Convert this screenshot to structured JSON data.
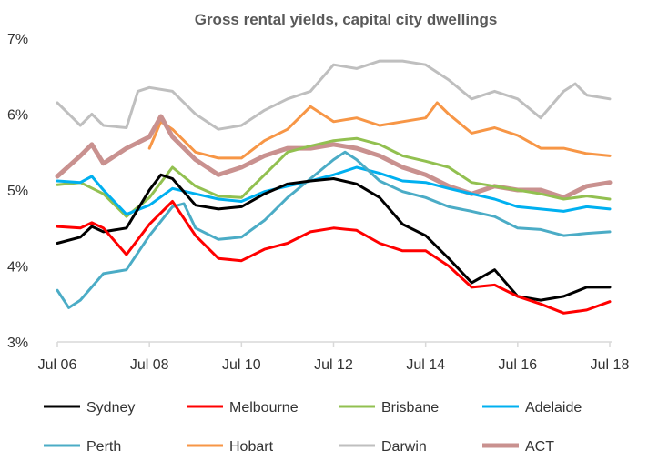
{
  "chart_data": {
    "type": "line",
    "title": "Gross rental yields, capital city dwellings",
    "xlabel": "",
    "ylabel": "",
    "x_ticks": [
      "Jul 06",
      "Jul 08",
      "Jul 10",
      "Jul 12",
      "Jul 14",
      "Jul 16",
      "Jul 18"
    ],
    "x_range": [
      "2006-07",
      "2018-07"
    ],
    "y_ticks": [
      "3%",
      "4%",
      "5%",
      "6%",
      "7%"
    ],
    "ylim": [
      3,
      7
    ],
    "grid": false,
    "legend_position": "bottom",
    "series": [
      {
        "name": "Sydney",
        "color": "#000000",
        "width": 3,
        "points": [
          [
            "2006-07",
            4.3
          ],
          [
            "2007-01",
            4.38
          ],
          [
            "2007-04",
            4.52
          ],
          [
            "2007-07",
            4.45
          ],
          [
            "2008-01",
            4.5
          ],
          [
            "2008-07",
            5.0
          ],
          [
            "2008-10",
            5.2
          ],
          [
            "2009-01",
            5.15
          ],
          [
            "2009-07",
            4.8
          ],
          [
            "2010-01",
            4.75
          ],
          [
            "2010-07",
            4.78
          ],
          [
            "2011-01",
            4.95
          ],
          [
            "2011-07",
            5.08
          ],
          [
            "2012-01",
            5.12
          ],
          [
            "2012-07",
            5.15
          ],
          [
            "2013-01",
            5.08
          ],
          [
            "2013-07",
            4.9
          ],
          [
            "2014-01",
            4.55
          ],
          [
            "2014-07",
            4.4
          ],
          [
            "2015-01",
            4.1
          ],
          [
            "2015-07",
            3.78
          ],
          [
            "2016-01",
            3.95
          ],
          [
            "2016-07",
            3.6
          ],
          [
            "2017-01",
            3.55
          ],
          [
            "2017-07",
            3.6
          ],
          [
            "2018-01",
            3.72
          ],
          [
            "2018-07",
            3.72
          ]
        ]
      },
      {
        "name": "Melbourne",
        "color": "#ff0000",
        "width": 3,
        "points": [
          [
            "2006-07",
            4.52
          ],
          [
            "2007-01",
            4.5
          ],
          [
            "2007-04",
            4.57
          ],
          [
            "2007-07",
            4.5
          ],
          [
            "2008-01",
            4.15
          ],
          [
            "2008-07",
            4.55
          ],
          [
            "2009-01",
            4.85
          ],
          [
            "2009-07",
            4.4
          ],
          [
            "2010-01",
            4.1
          ],
          [
            "2010-07",
            4.07
          ],
          [
            "2011-01",
            4.22
          ],
          [
            "2011-07",
            4.3
          ],
          [
            "2012-01",
            4.45
          ],
          [
            "2012-07",
            4.5
          ],
          [
            "2013-01",
            4.47
          ],
          [
            "2013-07",
            4.3
          ],
          [
            "2014-01",
            4.2
          ],
          [
            "2014-07",
            4.2
          ],
          [
            "2015-01",
            4.0
          ],
          [
            "2015-07",
            3.72
          ],
          [
            "2016-01",
            3.75
          ],
          [
            "2016-07",
            3.6
          ],
          [
            "2017-01",
            3.5
          ],
          [
            "2017-07",
            3.38
          ],
          [
            "2018-01",
            3.42
          ],
          [
            "2018-07",
            3.53
          ]
        ]
      },
      {
        "name": "Brisbane",
        "color": "#92c050",
        "width": 3,
        "points": [
          [
            "2006-07",
            5.07
          ],
          [
            "2007-01",
            5.1
          ],
          [
            "2007-07",
            4.95
          ],
          [
            "2008-01",
            4.65
          ],
          [
            "2008-07",
            4.9
          ],
          [
            "2009-01",
            5.3
          ],
          [
            "2009-07",
            5.05
          ],
          [
            "2010-01",
            4.92
          ],
          [
            "2010-07",
            4.9
          ],
          [
            "2011-01",
            5.2
          ],
          [
            "2011-07",
            5.5
          ],
          [
            "2012-01",
            5.58
          ],
          [
            "2012-07",
            5.65
          ],
          [
            "2013-01",
            5.68
          ],
          [
            "2013-07",
            5.6
          ],
          [
            "2014-01",
            5.45
          ],
          [
            "2014-07",
            5.38
          ],
          [
            "2015-01",
            5.3
          ],
          [
            "2015-07",
            5.1
          ],
          [
            "2016-01",
            5.05
          ],
          [
            "2016-07",
            5.0
          ],
          [
            "2017-01",
            4.95
          ],
          [
            "2017-07",
            4.88
          ],
          [
            "2018-01",
            4.92
          ],
          [
            "2018-07",
            4.88
          ]
        ]
      },
      {
        "name": "Adelaide",
        "color": "#00b0f0",
        "width": 3,
        "points": [
          [
            "2006-07",
            5.12
          ],
          [
            "2007-01",
            5.1
          ],
          [
            "2007-04",
            5.18
          ],
          [
            "2007-07",
            5.0
          ],
          [
            "2008-01",
            4.68
          ],
          [
            "2008-07",
            4.8
          ],
          [
            "2009-01",
            5.02
          ],
          [
            "2009-07",
            4.95
          ],
          [
            "2010-01",
            4.88
          ],
          [
            "2010-07",
            4.85
          ],
          [
            "2011-01",
            4.98
          ],
          [
            "2011-07",
            5.05
          ],
          [
            "2012-01",
            5.12
          ],
          [
            "2012-07",
            5.2
          ],
          [
            "2013-01",
            5.3
          ],
          [
            "2013-07",
            5.22
          ],
          [
            "2014-01",
            5.12
          ],
          [
            "2014-07",
            5.1
          ],
          [
            "2015-01",
            5.02
          ],
          [
            "2015-07",
            4.95
          ],
          [
            "2016-01",
            4.88
          ],
          [
            "2016-07",
            4.78
          ],
          [
            "2017-01",
            4.75
          ],
          [
            "2017-07",
            4.72
          ],
          [
            "2018-01",
            4.78
          ],
          [
            "2018-07",
            4.75
          ]
        ]
      },
      {
        "name": "Perth",
        "color": "#4bacc6",
        "width": 3,
        "points": [
          [
            "2006-07",
            3.68
          ],
          [
            "2006-10",
            3.45
          ],
          [
            "2007-01",
            3.55
          ],
          [
            "2007-07",
            3.9
          ],
          [
            "2008-01",
            3.95
          ],
          [
            "2008-07",
            4.4
          ],
          [
            "2009-01",
            4.78
          ],
          [
            "2009-04",
            4.82
          ],
          [
            "2009-07",
            4.5
          ],
          [
            "2010-01",
            4.35
          ],
          [
            "2010-07",
            4.38
          ],
          [
            "2011-01",
            4.6
          ],
          [
            "2011-07",
            4.9
          ],
          [
            "2012-01",
            5.15
          ],
          [
            "2012-07",
            5.4
          ],
          [
            "2012-10",
            5.5
          ],
          [
            "2013-01",
            5.4
          ],
          [
            "2013-07",
            5.12
          ],
          [
            "2014-01",
            4.98
          ],
          [
            "2014-07",
            4.9
          ],
          [
            "2015-01",
            4.78
          ],
          [
            "2015-07",
            4.72
          ],
          [
            "2016-01",
            4.65
          ],
          [
            "2016-07",
            4.5
          ],
          [
            "2017-01",
            4.48
          ],
          [
            "2017-07",
            4.4
          ],
          [
            "2018-01",
            4.43
          ],
          [
            "2018-07",
            4.45
          ]
        ]
      },
      {
        "name": "Hobart",
        "color": "#f79646",
        "width": 3,
        "points": [
          [
            "2008-07",
            5.55
          ],
          [
            "2008-10",
            5.9
          ],
          [
            "2009-01",
            5.8
          ],
          [
            "2009-07",
            5.5
          ],
          [
            "2010-01",
            5.42
          ],
          [
            "2010-07",
            5.42
          ],
          [
            "2011-01",
            5.65
          ],
          [
            "2011-07",
            5.8
          ],
          [
            "2012-01",
            6.1
          ],
          [
            "2012-07",
            5.9
          ],
          [
            "2013-01",
            5.95
          ],
          [
            "2013-07",
            5.85
          ],
          [
            "2014-01",
            5.9
          ],
          [
            "2014-07",
            5.95
          ],
          [
            "2014-10",
            6.15
          ],
          [
            "2015-01",
            6.0
          ],
          [
            "2015-07",
            5.75
          ],
          [
            "2016-01",
            5.82
          ],
          [
            "2016-07",
            5.72
          ],
          [
            "2017-01",
            5.55
          ],
          [
            "2017-07",
            5.55
          ],
          [
            "2018-01",
            5.48
          ],
          [
            "2018-07",
            5.45
          ]
        ]
      },
      {
        "name": "Darwin",
        "color": "#bfbfbf",
        "width": 3,
        "points": [
          [
            "2006-07",
            6.15
          ],
          [
            "2007-01",
            5.85
          ],
          [
            "2007-04",
            6.0
          ],
          [
            "2007-07",
            5.85
          ],
          [
            "2008-01",
            5.82
          ],
          [
            "2008-04",
            6.3
          ],
          [
            "2008-07",
            6.35
          ],
          [
            "2009-01",
            6.3
          ],
          [
            "2009-07",
            6.0
          ],
          [
            "2010-01",
            5.8
          ],
          [
            "2010-07",
            5.85
          ],
          [
            "2011-01",
            6.05
          ],
          [
            "2011-07",
            6.2
          ],
          [
            "2012-01",
            6.3
          ],
          [
            "2012-07",
            6.65
          ],
          [
            "2013-01",
            6.6
          ],
          [
            "2013-07",
            6.7
          ],
          [
            "2014-01",
            6.7
          ],
          [
            "2014-07",
            6.65
          ],
          [
            "2015-01",
            6.45
          ],
          [
            "2015-07",
            6.2
          ],
          [
            "2016-01",
            6.3
          ],
          [
            "2016-07",
            6.2
          ],
          [
            "2017-01",
            5.95
          ],
          [
            "2017-07",
            6.3
          ],
          [
            "2017-10",
            6.4
          ],
          [
            "2018-01",
            6.25
          ],
          [
            "2018-07",
            6.2
          ]
        ]
      },
      {
        "name": "ACT",
        "color": "#c9918f",
        "width": 5,
        "points": [
          [
            "2006-07",
            5.18
          ],
          [
            "2007-01",
            5.45
          ],
          [
            "2007-04",
            5.6
          ],
          [
            "2007-07",
            5.35
          ],
          [
            "2008-01",
            5.55
          ],
          [
            "2008-07",
            5.7
          ],
          [
            "2008-10",
            5.97
          ],
          [
            "2009-01",
            5.7
          ],
          [
            "2009-07",
            5.4
          ],
          [
            "2010-01",
            5.2
          ],
          [
            "2010-07",
            5.3
          ],
          [
            "2011-01",
            5.45
          ],
          [
            "2011-07",
            5.55
          ],
          [
            "2012-01",
            5.55
          ],
          [
            "2012-07",
            5.6
          ],
          [
            "2013-01",
            5.55
          ],
          [
            "2013-07",
            5.45
          ],
          [
            "2014-01",
            5.3
          ],
          [
            "2014-07",
            5.2
          ],
          [
            "2015-01",
            5.05
          ],
          [
            "2015-07",
            4.95
          ],
          [
            "2016-01",
            5.05
          ],
          [
            "2016-07",
            5.0
          ],
          [
            "2017-01",
            5.0
          ],
          [
            "2017-07",
            4.9
          ],
          [
            "2018-01",
            5.05
          ],
          [
            "2018-07",
            5.1
          ]
        ]
      }
    ]
  }
}
